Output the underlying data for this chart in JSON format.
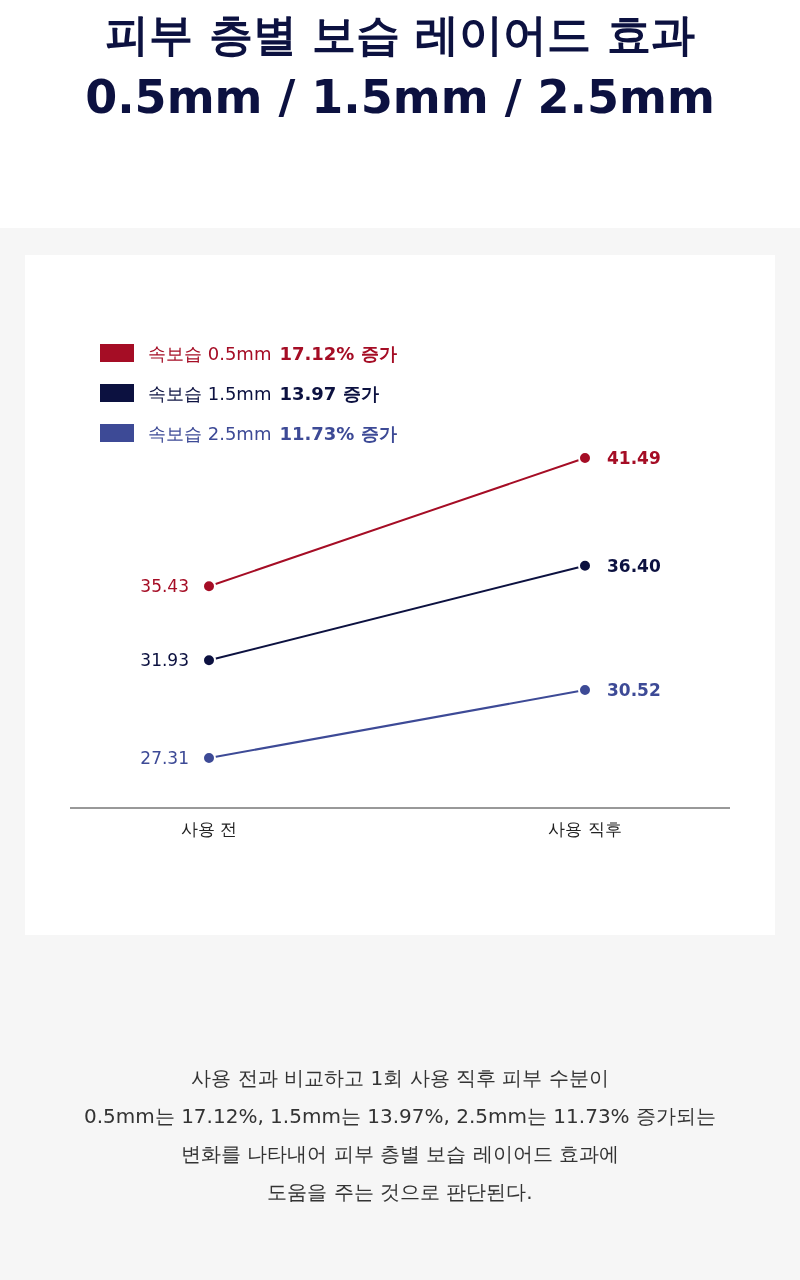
{
  "chart_data": {
    "type": "line",
    "title": "피부 층별 보습 레이어드 효과",
    "subtitle": "0.5mm / 1.5mm / 2.5mm",
    "categories": [
      "사용 전",
      "사용 직후"
    ],
    "series": [
      {
        "name": "속보습 0.5mm 17.12% 증가",
        "color": "#a50d25",
        "values": [
          35.43,
          41.49
        ],
        "value_labels": [
          "35.43",
          "41.49"
        ]
      },
      {
        "name": "속보습 1.5mm 13.97 증가",
        "color": "#0c1140",
        "values": [
          31.93,
          36.4
        ],
        "value_labels": [
          "31.93",
          "36.40"
        ]
      },
      {
        "name": "속보습 2.5mm 11.73% 증가",
        "color": "#3d4a96",
        "values": [
          27.31,
          30.52
        ],
        "value_labels": [
          "27.31",
          "30.52"
        ]
      }
    ],
    "legend": "top left",
    "marker": "circle",
    "line_style": "solid",
    "annotations": [
      "사용 전과 비교하고 1회 사용 직후 피부 수분이",
      "0.5mm는 17.12%, 1.5mm는 13.97%, 2.5mm는 11.73% 증가되는",
      "변화를 나타내어 피부 층별 보습 레이어드 효과에",
      "도움을 주는 것으로 판단된다."
    ]
  }
}
